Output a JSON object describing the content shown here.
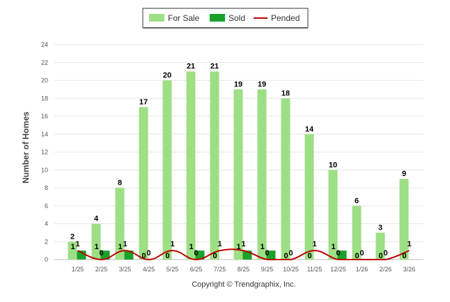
{
  "chart_data": {
    "type": "bar",
    "categories": [
      "1/25",
      "2/25",
      "3/25",
      "4/25",
      "5/25",
      "6/25",
      "7/25",
      "8/25",
      "9/25",
      "10/25",
      "11/25",
      "12/25",
      "1/26",
      "2/26",
      "3/26"
    ],
    "series": [
      {
        "name": "For Sale",
        "type": "bar",
        "color": "#9ddf84",
        "values": [
          2,
          4,
          8,
          17,
          20,
          21,
          21,
          19,
          19,
          18,
          14,
          10,
          6,
          3,
          9
        ]
      },
      {
        "name": "Sold",
        "type": "bar",
        "color": "#1aa12a",
        "values": [
          1,
          1,
          1,
          0,
          0,
          1,
          0,
          1,
          1,
          0,
          0,
          1,
          0,
          0,
          0
        ]
      },
      {
        "name": "Pended",
        "type": "line",
        "color": "#c00000",
        "values": [
          1,
          0,
          1,
          0,
          1,
          0,
          1,
          1,
          0,
          0,
          1,
          0,
          0,
          0,
          1
        ]
      }
    ],
    "ylabel": "Number of Homes",
    "ylim": [
      0,
      24
    ],
    "yticks": [
      0,
      2,
      4,
      6,
      8,
      10,
      12,
      14,
      16,
      18,
      20,
      22,
      24
    ],
    "grid": true,
    "legend": "top-center"
  },
  "footer": {
    "copyright": "Copyright © Trendgraphix, Inc."
  }
}
